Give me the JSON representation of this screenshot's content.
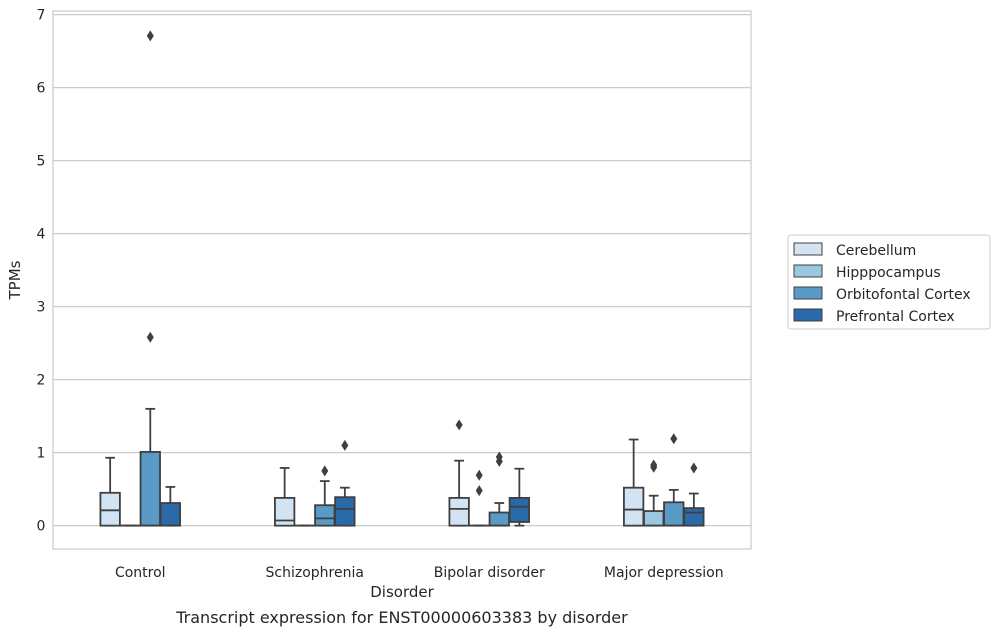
{
  "chart_data": {
    "type": "box",
    "title": "Transcript expression for ENST00000603383 by disorder",
    "xlabel": "Disorder",
    "ylabel": "TPMs",
    "ylim": [
      -0.32,
      7.05
    ],
    "yticks": [
      0,
      1,
      2,
      3,
      4,
      5,
      6,
      7
    ],
    "grid": "horizontal",
    "legend_position": "right",
    "categories": [
      "Control",
      "Schizophrenia",
      "Bipolar disorder",
      "Major depression"
    ],
    "series": [
      {
        "name": "Cerebellum",
        "color": "#d2e3f3",
        "boxes": [
          {
            "q1": 0.0,
            "median": 0.21,
            "q3": 0.45,
            "whisker_low": 0.0,
            "whisker_high": 0.93,
            "outliers": []
          },
          {
            "q1": 0.0,
            "median": 0.07,
            "q3": 0.38,
            "whisker_low": 0.0,
            "whisker_high": 0.79,
            "outliers": []
          },
          {
            "q1": 0.0,
            "median": 0.23,
            "q3": 0.38,
            "whisker_low": 0.0,
            "whisker_high": 0.89,
            "outliers": [
              1.38
            ]
          },
          {
            "q1": 0.0,
            "median": 0.22,
            "q3": 0.52,
            "whisker_low": 0.0,
            "whisker_high": 1.18,
            "outliers": []
          }
        ]
      },
      {
        "name": "Hipppocampus",
        "color": "#9ac8e0",
        "boxes": [
          {
            "q1": 0.0,
            "median": 0.0,
            "q3": 0.0,
            "whisker_low": 0.0,
            "whisker_high": 0.0,
            "outliers": []
          },
          {
            "q1": 0.0,
            "median": 0.0,
            "q3": 0.0,
            "whisker_low": 0.0,
            "whisker_high": 0.0,
            "outliers": []
          },
          {
            "q1": 0.0,
            "median": 0.0,
            "q3": 0.0,
            "whisker_low": 0.0,
            "whisker_high": 0.0,
            "outliers": [
              0.48,
              0.69
            ]
          },
          {
            "q1": 0.0,
            "median": 0.0,
            "q3": 0.2,
            "whisker_low": 0.0,
            "whisker_high": 0.41,
            "outliers": [
              0.8,
              0.83
            ]
          }
        ]
      },
      {
        "name": "Orbitofontal Cortex",
        "color": "#5a9ac6",
        "boxes": [
          {
            "q1": 0.0,
            "median": 0.0,
            "q3": 1.01,
            "whisker_low": 0.0,
            "whisker_high": 1.6,
            "outliers": [
              2.58,
              6.71
            ]
          },
          {
            "q1": 0.0,
            "median": 0.1,
            "q3": 0.28,
            "whisker_low": 0.0,
            "whisker_high": 0.61,
            "outliers": [
              0.75
            ]
          },
          {
            "q1": 0.0,
            "median": 0.0,
            "q3": 0.18,
            "whisker_low": 0.0,
            "whisker_high": 0.31,
            "outliers": [
              0.88,
              0.94
            ]
          },
          {
            "q1": 0.0,
            "median": 0.0,
            "q3": 0.32,
            "whisker_low": 0.0,
            "whisker_high": 0.49,
            "outliers": [
              1.19
            ]
          }
        ]
      },
      {
        "name": "Prefrontal Cortex",
        "color": "#2b6aa9",
        "boxes": [
          {
            "q1": 0.0,
            "median": 0.0,
            "q3": 0.31,
            "whisker_low": 0.0,
            "whisker_high": 0.53,
            "outliers": []
          },
          {
            "q1": 0.0,
            "median": 0.23,
            "q3": 0.39,
            "whisker_low": 0.0,
            "whisker_high": 0.52,
            "outliers": [
              1.1
            ]
          },
          {
            "q1": 0.05,
            "median": 0.26,
            "q3": 0.38,
            "whisker_low": 0.0,
            "whisker_high": 0.78,
            "outliers": []
          },
          {
            "q1": 0.0,
            "median": 0.18,
            "q3": 0.24,
            "whisker_low": 0.0,
            "whisker_high": 0.44,
            "outliers": [
              0.79
            ]
          }
        ]
      }
    ]
  }
}
